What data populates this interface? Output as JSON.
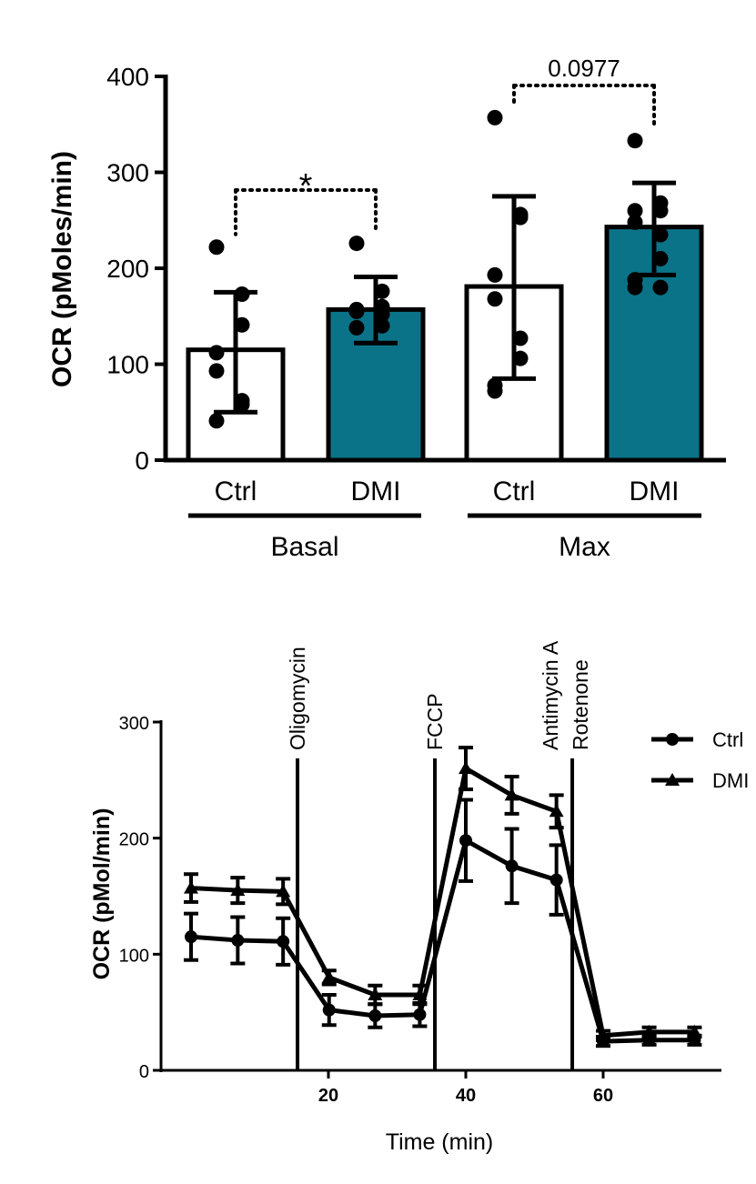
{
  "chart_data": [
    {
      "type": "bar",
      "ylabel": "OCR (pMoles/min)",
      "ylim": [
        0,
        400
      ],
      "yticks": [
        "0",
        "100",
        "200",
        "300",
        "400"
      ],
      "grid": false,
      "groups": [
        {
          "label": "Basal",
          "bars": [
            {
              "label": "Ctrl",
              "color": "#ffffff",
              "mean": 115,
              "sd_low": 50,
              "sd_high": 175,
              "points": [
                222,
                173,
                141,
                112,
                93,
                62,
                58,
                41
              ]
            },
            {
              "label": "DMI",
              "color": "#0b7388",
              "mean": 157,
              "sd_low": 122,
              "sd_high": 191,
              "points": [
                226,
                176,
                160,
                157,
                155,
                152,
                140,
                138
              ]
            }
          ],
          "comparison": {
            "label": "*",
            "top_left": 222,
            "top_right": 226
          }
        },
        {
          "label": "Max",
          "bars": [
            {
              "label": "Ctrl",
              "color": "#ffffff",
              "mean": 181,
              "sd_low": 85,
              "sd_high": 275,
              "points": [
                357,
                256,
                253,
                193,
                168,
                127,
                106,
                72,
                78
              ]
            },
            {
              "label": "DMI",
              "color": "#0b7388",
              "mean": 243,
              "sd_low": 193,
              "sd_high": 289,
              "points": [
                333,
                268,
                260,
                260,
                248,
                235,
                210,
                188,
                180,
                180
              ]
            }
          ],
          "comparison": {
            "label": "0.0977",
            "top_left": 357,
            "top_right": 333
          }
        }
      ]
    },
    {
      "type": "line",
      "xlabel": "Time (min)",
      "ylabel": "OCR (pMol/min)",
      "xlim": [
        -4,
        78
      ],
      "ylim": [
        0,
        300
      ],
      "xticks": [
        "20",
        "40",
        "60"
      ],
      "yticks": [
        "0",
        "100",
        "200",
        "300"
      ],
      "x": [
        0,
        6.8,
        13.4,
        20.1,
        26.8,
        33.3,
        40,
        46.7,
        53.2,
        60,
        66.7,
        73.3
      ],
      "series": [
        {
          "name": "Ctrl",
          "marker": "circle",
          "values": [
            115,
            112,
            111,
            52,
            47,
            48,
            198,
            176,
            164,
            25,
            26,
            26
          ],
          "errors": [
            20,
            20,
            20,
            13,
            10,
            10,
            35,
            32,
            30,
            4,
            4,
            4
          ]
        },
        {
          "name": "DMI",
          "marker": "triangle",
          "values": [
            157,
            155,
            154,
            80,
            65,
            65,
            260,
            237,
            223,
            30,
            33,
            33
          ],
          "errors": [
            12,
            11,
            11,
            6,
            8,
            8,
            18,
            16,
            14,
            4,
            4,
            4
          ]
        }
      ],
      "injections": [
        {
          "label": "Oligomycin",
          "x": 15.5
        },
        {
          "label": "FCCP",
          "x": 35.5
        },
        {
          "label": "Antimycin A",
          "x": 55.5
        },
        {
          "label": "Rotenone",
          "x": 55.5
        }
      ],
      "legend": "top-right"
    }
  ]
}
